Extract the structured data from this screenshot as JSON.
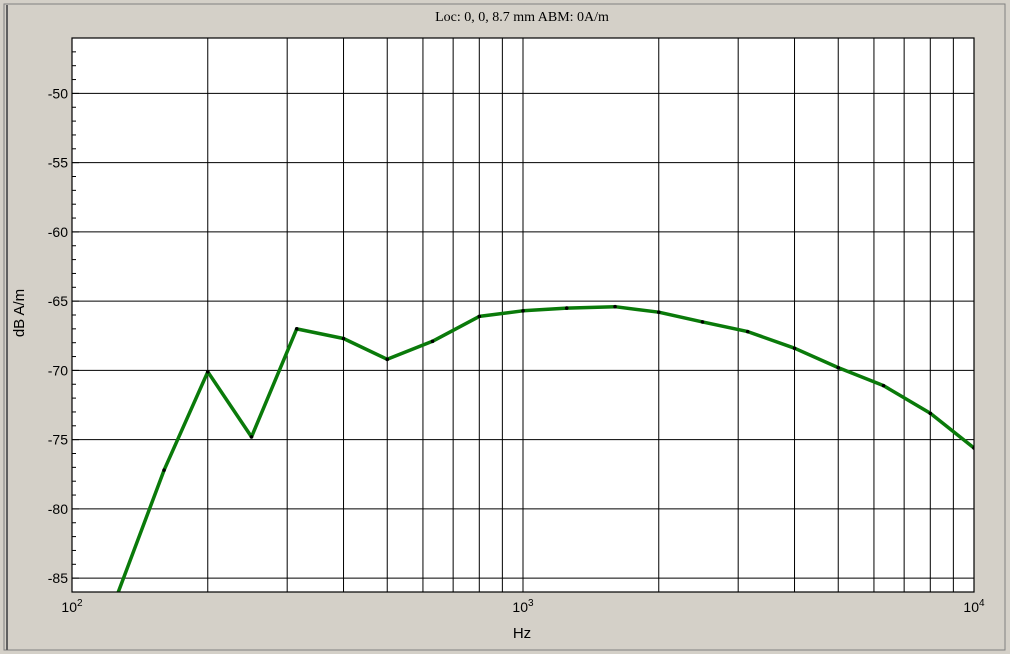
{
  "chart_data": {
    "type": "line",
    "title": "Loc: 0, 0, 8.7 mm ABM: 0A/m",
    "xlabel": "Hz",
    "ylabel": "dB A/m",
    "x_scale": "log",
    "xlim": [
      100,
      10000
    ],
    "ylim": [
      -86,
      -46
    ],
    "grid": true,
    "x_ticks": [
      {
        "value": 100,
        "base": "10",
        "exp": "2"
      },
      {
        "value": 1000,
        "base": "10",
        "exp": "3"
      },
      {
        "value": 10000,
        "base": "10",
        "exp": "4"
      }
    ],
    "y_ticks": [
      -50,
      -55,
      -60,
      -65,
      -70,
      -75,
      -80,
      -85
    ],
    "colors": {
      "line": "#0a7a0a",
      "markers": "#000000",
      "grid": "#000000",
      "background": "#ffffff",
      "frame": "#d4d0c8"
    },
    "series": [
      {
        "x": [
          125,
          160,
          200,
          250,
          315,
          400,
          500,
          630,
          800,
          1000,
          1250,
          1600,
          2000,
          2500,
          3150,
          4000,
          5000,
          6300,
          8000,
          10000
        ],
        "y": [
          -86.5,
          -77.2,
          -70.1,
          -74.8,
          -67.0,
          -67.7,
          -69.2,
          -67.9,
          -66.1,
          -65.7,
          -65.5,
          -65.4,
          -65.8,
          -66.5,
          -67.2,
          -68.4,
          -69.8,
          -71.1,
          -73.1,
          -75.6
        ]
      }
    ]
  }
}
